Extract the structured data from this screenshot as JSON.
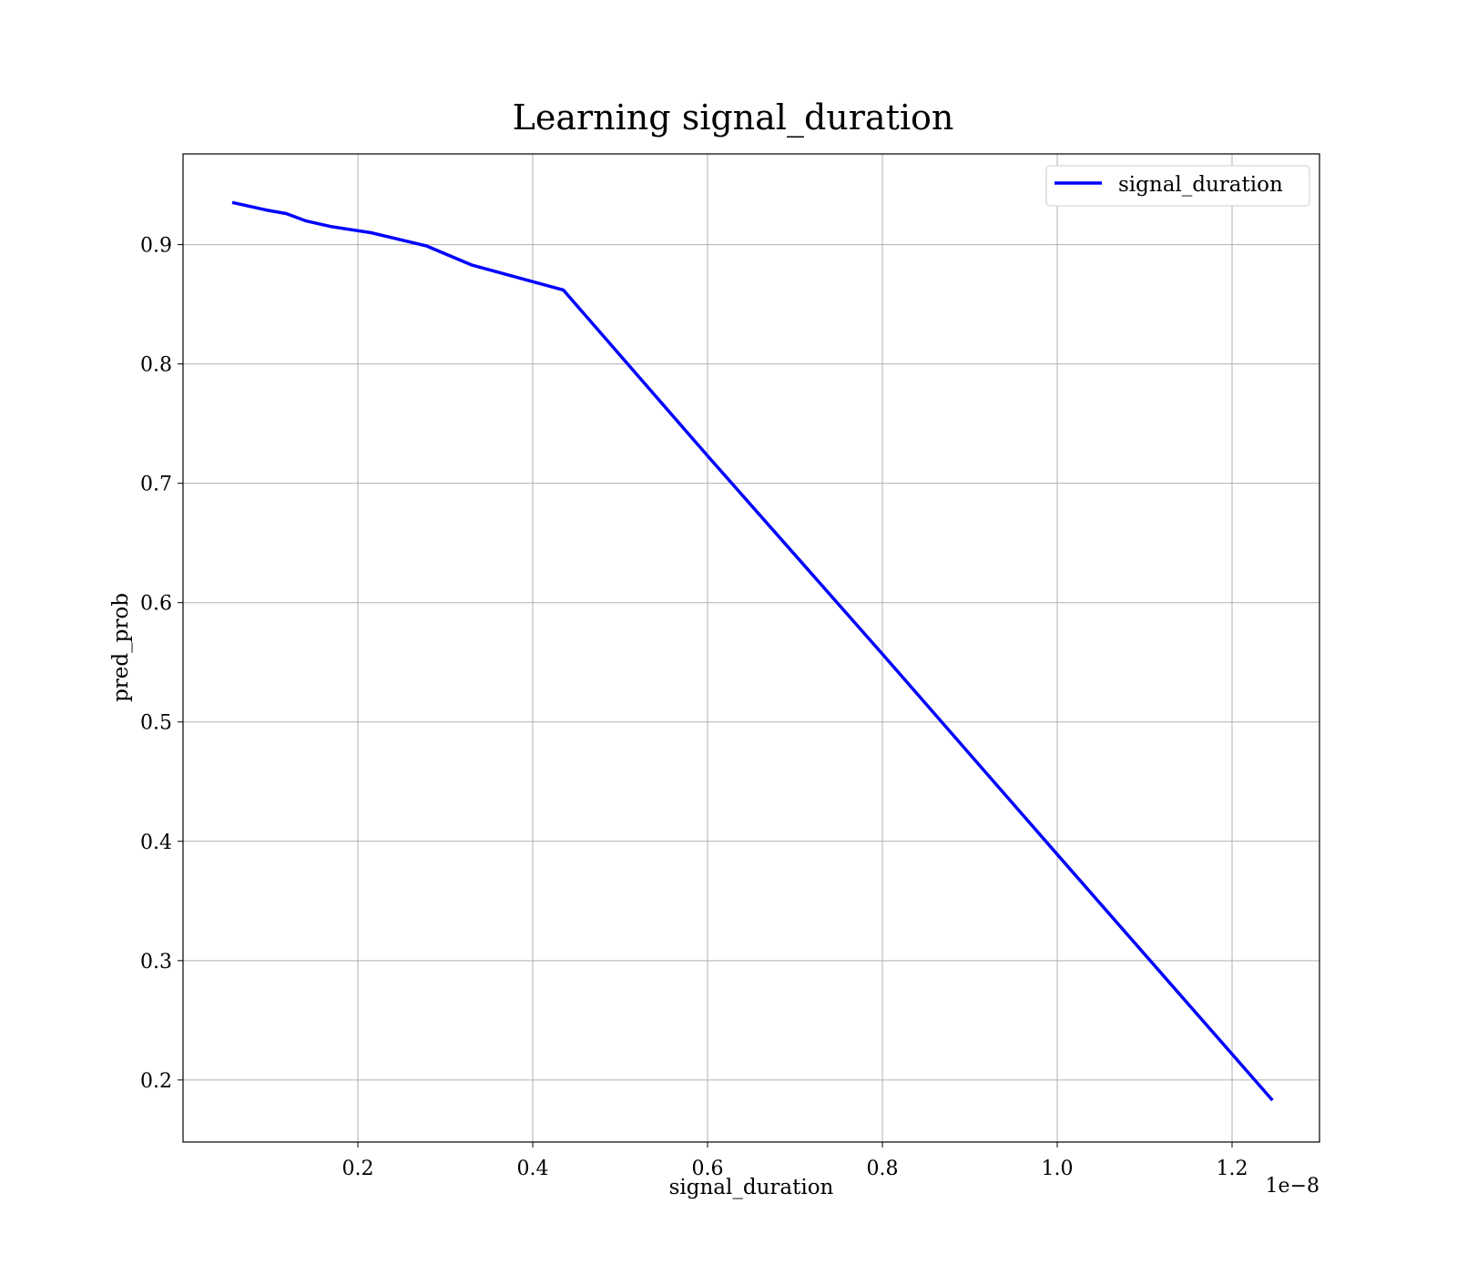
{
  "chart_data": {
    "type": "line",
    "title": "Learning signal_duration",
    "xlabel": "signal_duration",
    "ylabel": "pred_prob",
    "x_offset_text": "1e−8",
    "x_scale": 1e-08,
    "xlim": [
      0.0,
      1.3
    ],
    "ylim": [
      0.148,
      0.976
    ],
    "xticks": [
      0.2,
      0.4,
      0.6,
      0.8,
      1.0,
      1.2
    ],
    "xtick_labels": [
      "0.2",
      "0.4",
      "0.6",
      "0.8",
      "1.0",
      "1.2"
    ],
    "yticks": [
      0.2,
      0.3,
      0.4,
      0.5,
      0.6,
      0.7,
      0.8,
      0.9
    ],
    "ytick_labels": [
      "0.2",
      "0.3",
      "0.4",
      "0.5",
      "0.6",
      "0.7",
      "0.8",
      "0.9"
    ],
    "grid": true,
    "legend_position": "top-right",
    "series": [
      {
        "name": "signal_duration",
        "color": "#0000ff",
        "x": [
          0.058,
          0.095,
          0.118,
          0.14,
          0.17,
          0.215,
          0.278,
          0.33,
          0.435,
          0.6,
          0.8,
          1.0,
          1.245
        ],
        "y": [
          0.935,
          0.929,
          0.926,
          0.92,
          0.915,
          0.91,
          0.899,
          0.883,
          0.862,
          0.723,
          0.557,
          0.389,
          0.184
        ]
      }
    ]
  }
}
